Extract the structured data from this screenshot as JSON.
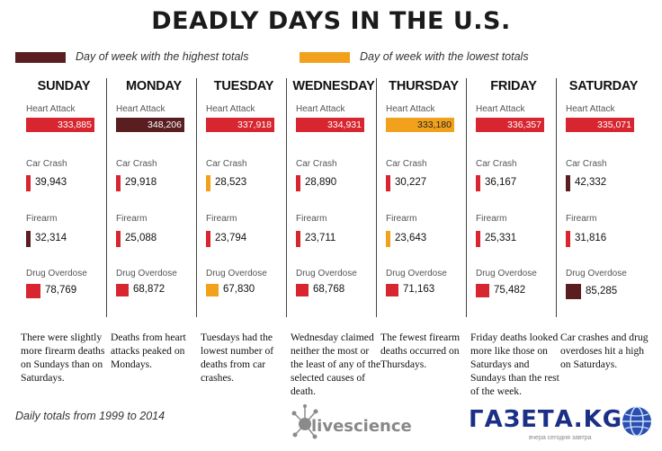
{
  "title": "DEADLY DAYS IN THE U.S.",
  "legend": {
    "highest": {
      "label": "Day of week with the highest totals",
      "color": "#5a1e21"
    },
    "lowest": {
      "label": "Day of week with the lowest totals",
      "color": "#f1a11c"
    }
  },
  "colors": {
    "default": "#d7262f",
    "highest": "#5a1e21",
    "lowest": "#f1a11c"
  },
  "causes": [
    "Heart Attack",
    "Car Crash",
    "Firearm",
    "Drug Overdose"
  ],
  "chart_data": {
    "type": "bar",
    "title": "DEADLY DAYS IN THE U.S.",
    "categories": [
      "SUNDAY",
      "MONDAY",
      "TUESDAY",
      "WEDNESDAY",
      "THURSDAY",
      "FRIDAY",
      "SATURDAY"
    ],
    "series": [
      {
        "name": "Heart Attack",
        "values": [
          333885,
          348206,
          337918,
          334931,
          333180,
          336357,
          335071
        ],
        "labels": [
          "333,885",
          "348,206",
          "337,918",
          "334,931",
          "333,180",
          "336,357",
          "335,071"
        ],
        "highlight": [
          "default",
          "highest",
          "default",
          "default",
          "lowest",
          "default",
          "default"
        ]
      },
      {
        "name": "Car Crash",
        "values": [
          39943,
          29918,
          28523,
          28890,
          30227,
          36167,
          42332
        ],
        "labels": [
          "39,943",
          "29,918",
          "28,523",
          "28,890",
          "30,227",
          "36,167",
          "42,332"
        ],
        "highlight": [
          "default",
          "default",
          "lowest",
          "default",
          "default",
          "default",
          "highest"
        ]
      },
      {
        "name": "Firearm",
        "values": [
          32314,
          25088,
          23794,
          23711,
          23643,
          25331,
          31816
        ],
        "labels": [
          "32,314",
          "25,088",
          "23,794",
          "23,711",
          "23,643",
          "25,331",
          "31,816"
        ],
        "highlight": [
          "highest",
          "default",
          "default",
          "default",
          "lowest",
          "default",
          "default"
        ]
      },
      {
        "name": "Drug Overdose",
        "values": [
          78769,
          68872,
          67830,
          68768,
          71163,
          75482,
          85285
        ],
        "labels": [
          "78,769",
          "68,872",
          "67,830",
          "68,768",
          "71,163",
          "75,482",
          "85,285"
        ],
        "highlight": [
          "default",
          "default",
          "lowest",
          "default",
          "default",
          "default",
          "highest"
        ]
      }
    ]
  },
  "notes": [
    "There were slightly more firearm deaths on Sundays than on Saturdays.",
    "Deaths from heart attacks peaked on Mondays.",
    "Tuesdays had the lowest number of deaths from car crashes.",
    "Wednesday claimed neither the most or the least of any of the selected causes of death.",
    "The fewest firearm deaths occurred on Thursdays.",
    "Friday deaths looked more like those on Saturdays and Sundays than the rest of the week.",
    "Car crashes and drug overdoses hit a high on Saturdays."
  ],
  "footer": "Daily totals from 1999 to 2014",
  "brand": "livescience",
  "watermark": {
    "text": "ГАЗЕТА.KG",
    "subtext": "вчера сегодня завтра"
  }
}
